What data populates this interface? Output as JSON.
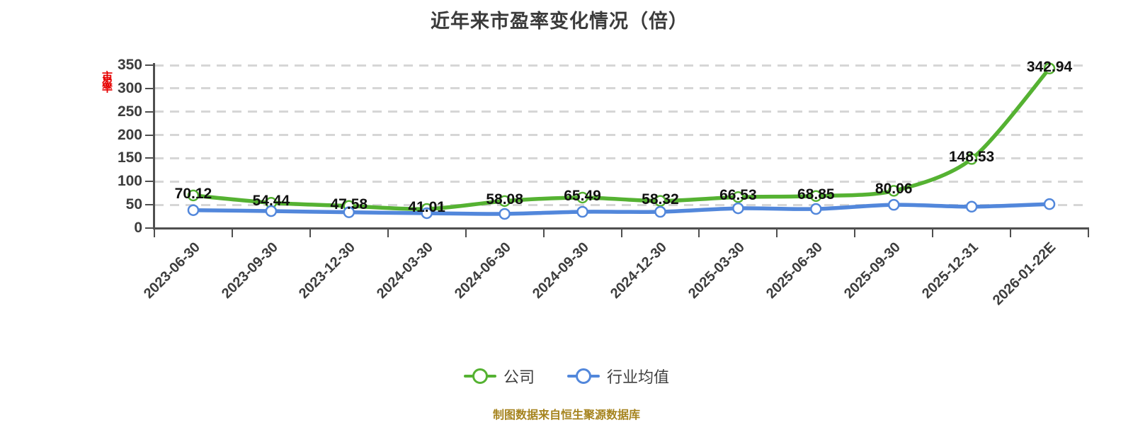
{
  "title": "近年来市盈率变化情况（倍）",
  "y_axis_title": "市盈率",
  "footer": "制图数据来自恒生聚源数据库",
  "legend": {
    "company": {
      "label": "公司",
      "color": "#55b232"
    },
    "industry": {
      "label": "行业均值",
      "color": "#5287db"
    }
  },
  "colors": {
    "company_line": "#55b232",
    "industry_line": "#5287db",
    "marker_fill": "#ffffff",
    "gridline": "#d6d6d6",
    "axis": "#4f4f4f",
    "axis_label": "#3d3d3d",
    "data_label": "#111111",
    "title": "#3b3b3b",
    "footer": "#a6841f",
    "y_axis_title": "#e60000"
  },
  "chart_data": {
    "type": "line",
    "title": "近年来市盈率变化情况（倍）",
    "categories": [
      "2023-06-30",
      "2023-09-30",
      "2023-12-30",
      "2024-03-30",
      "2024-06-30",
      "2024-09-30",
      "2024-12-30",
      "2025-03-30",
      "2025-06-30",
      "2025-09-30",
      "2025-12-31",
      "2026-01-22E"
    ],
    "series": [
      {
        "name": "公司",
        "color": "#55b232",
        "values": [
          70.12,
          54.44,
          47.58,
          41.01,
          58.08,
          65.49,
          58.32,
          66.53,
          68.85,
          80.06,
          148.53,
          342.94
        ],
        "labels_shown": true
      },
      {
        "name": "行业均值",
        "color": "#5287db",
        "values": [
          38.5,
          36.5,
          34,
          32,
          30.5,
          35,
          35,
          42.5,
          41,
          50,
          46,
          51.5
        ],
        "labels_shown": false,
        "values_estimated_from_pixels": true
      }
    ],
    "ylim": [
      0,
      350
    ],
    "y_ticks": [
      0,
      50,
      100,
      150,
      200,
      250,
      300,
      350
    ],
    "grid": "horizontal dashed",
    "legend_position": "bottom",
    "x_label_rotation": 45,
    "smooth": true
  }
}
